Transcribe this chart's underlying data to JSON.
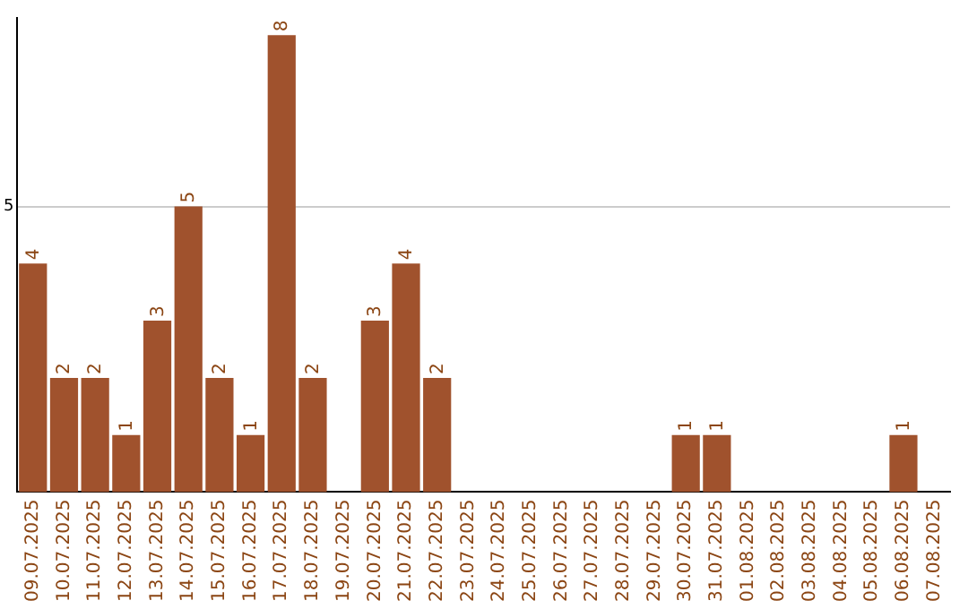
{
  "chart_data": {
    "type": "bar",
    "categories": [
      "09.07.2025",
      "10.07.2025",
      "11.07.2025",
      "12.07.2025",
      "13.07.2025",
      "14.07.2025",
      "15.07.2025",
      "16.07.2025",
      "17.07.2025",
      "18.07.2025",
      "19.07.2025",
      "20.07.2025",
      "21.07.2025",
      "22.07.2025",
      "23.07.2025",
      "24.07.2025",
      "25.07.2025",
      "26.07.2025",
      "27.07.2025",
      "28.07.2025",
      "29.07.2025",
      "30.07.2025",
      "31.07.2025",
      "01.08.2025",
      "02.08.2025",
      "03.08.2025",
      "04.08.2025",
      "05.08.2025",
      "06.08.2025",
      "07.08.2025"
    ],
    "values": [
      4,
      2,
      2,
      1,
      3,
      5,
      2,
      1,
      8,
      2,
      0,
      3,
      4,
      2,
      0,
      0,
      0,
      0,
      0,
      0,
      0,
      1,
      1,
      0,
      0,
      0,
      0,
      0,
      1,
      0
    ],
    "value_labels": [
      "4",
      "2",
      "2",
      "1",
      "3",
      "5",
      "2",
      "1",
      "8",
      "2",
      null,
      "3",
      "4",
      "2",
      null,
      null,
      null,
      null,
      null,
      null,
      null,
      "1",
      "1",
      null,
      null,
      null,
      null,
      null,
      "1",
      null
    ],
    "color": "#a0522d",
    "ylim": [
      0,
      8.3
    ],
    "yticks": [
      5
    ],
    "grid": "y",
    "legend": false
  }
}
